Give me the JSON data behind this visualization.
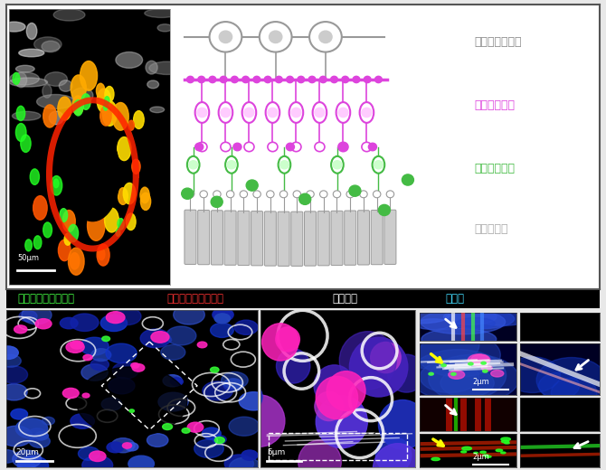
{
  "fig_width": 6.7,
  "fig_height": 5.2,
  "dpi": 100,
  "bg_color": "#e8e8e8",
  "top_panel": {
    "label_host_ganglion": "宿主神経節細胞",
    "label_host_bipolar": "宿主双極細胞",
    "label_transplant_bipolar": "移植双極細胞",
    "label_transplant_photoreceptor": "移植視細胞",
    "color_host_ganglion": "#888888",
    "color_host_bipolar": "#dd44dd",
    "color_transplant_bipolar": "#44bb44",
    "color_transplant_photoreceptor": "#aaaaaa",
    "scale_bar": "50μm"
  },
  "bottom_panel": {
    "label_post": "後シナプスマーカー",
    "label_pre": "前シナプスマーカー",
    "label_bipolar": "双極細胞",
    "label_nucleus": "細胞核",
    "color_post": "#44ff44",
    "color_pre": "#ff3333",
    "color_bipolar": "#ffffff",
    "color_nucleus": "#44ddff",
    "scale_20": "20μm",
    "scale_5": "5μm",
    "scale_2a": "2μm",
    "scale_2b": "2μm"
  }
}
